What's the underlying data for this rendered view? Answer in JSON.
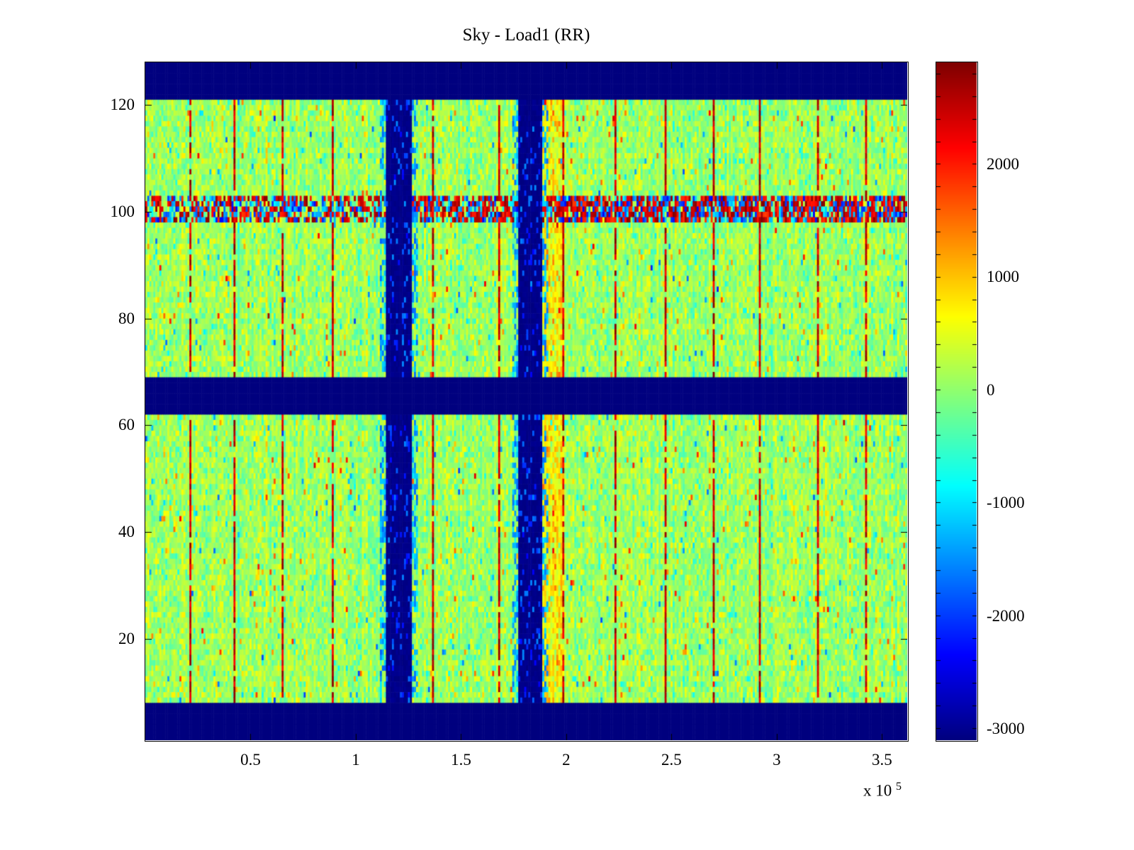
{
  "figure": {
    "background": "#ffffff",
    "axis_color": "#000000"
  },
  "chart_data": {
    "type": "heatmap",
    "title": "Sky - Load1 (RR)",
    "xlabel": "",
    "ylabel": "",
    "colormap": "jet",
    "xlim": [
      0,
      362000
    ],
    "ylim": [
      1,
      128
    ],
    "clim": [
      -3100,
      2900
    ],
    "x_ticks": [
      50000,
      100000,
      150000,
      200000,
      250000,
      300000,
      350000
    ],
    "x_tick_labels": [
      "0.5",
      "1",
      "1.5",
      "2",
      "2.5",
      "3",
      "3.5"
    ],
    "x_scale_note": "x 10",
    "x_scale_exp": "5",
    "y_ticks": [
      20,
      40,
      60,
      80,
      100,
      120
    ],
    "colorbar_ticks": [
      2000,
      1000,
      0,
      -1000,
      -2000,
      -3000
    ],
    "colorbar_minor_tick_step": 200,
    "background_mean": 70,
    "background_std": 285,
    "features": {
      "horizontal_blue_bands_y": [
        [
          1,
          8
        ],
        [
          62,
          68.5
        ],
        [
          121,
          128
        ]
      ],
      "vertical_blue_bands_x": [
        [
          114000,
          127000
        ],
        [
          177000,
          189000
        ]
      ],
      "noisy_row_y": [
        98,
        102.8
      ],
      "noisy_row_hot_threshold_x": 130000,
      "warm_column_x": [
        189000,
        199500
      ],
      "red_line_x": [
        21200,
        42800,
        65700,
        89200,
        136400,
        168400,
        198700,
        223300,
        247500,
        270100,
        292300,
        319900,
        342800
      ],
      "blue_band_value": -3100,
      "red_line_value_range": [
        2000,
        2900
      ]
    }
  }
}
